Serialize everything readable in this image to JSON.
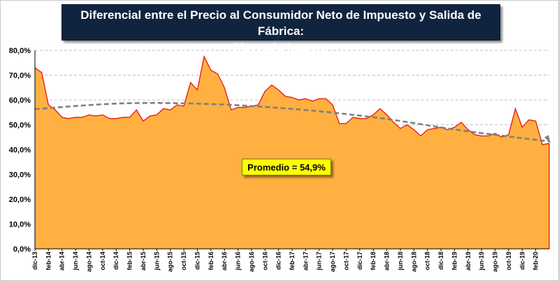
{
  "chart_data": {
    "type": "area",
    "title_line1": "Diferencial entre el Precio al Consumidor Neto de Impuesto y Salida de Fábrica:",
    "title_line2": "Mercado Interno",
    "annotation": "Promedio = 54,9%",
    "ylim": [
      0,
      80
    ],
    "yticks": [
      0,
      10,
      20,
      30,
      40,
      50,
      60,
      70,
      80
    ],
    "ytick_labels": [
      "0,0%",
      "10,0%",
      "20,0%",
      "30,0%",
      "40,0%",
      "50,0%",
      "60,0%",
      "70,0%",
      "80,0%"
    ],
    "x_labels": [
      "dic-13",
      "feb-14",
      "abr-14",
      "jun-14",
      "ago-14",
      "oct-14",
      "dic-14",
      "feb-15",
      "abr-15",
      "jun-15",
      "ago-15",
      "oct-15",
      "dic-15",
      "feb-16",
      "abr-16",
      "jun-16",
      "ago-16",
      "oct-16",
      "dic-16",
      "feb-17",
      "abr-17",
      "jun-17",
      "ago-17",
      "oct-17",
      "dic-17",
      "feb-18",
      "abr-18",
      "jun-18",
      "ago-18",
      "oct-18",
      "dic-18",
      "feb-19",
      "abr-19",
      "jun-19",
      "ago-19",
      "oct-19",
      "dic-19",
      "feb-20"
    ],
    "values": [
      73,
      71,
      58,
      56,
      53,
      52.5,
      53,
      53,
      54,
      53.5,
      54,
      52.5,
      52.5,
      53,
      53,
      56,
      51.5,
      53.5,
      54,
      56.5,
      56,
      58,
      57.5,
      67,
      64,
      77.5,
      72,
      70.5,
      65,
      56,
      57,
      57,
      57.5,
      58,
      63.5,
      66,
      64,
      61.5,
      61,
      60,
      60.5,
      59.5,
      60.5,
      60.5,
      58,
      50.5,
      50.5,
      53,
      52.5,
      52.5,
      54,
      56.5,
      54,
      51,
      48.5,
      50,
      48,
      45.5,
      48,
      48.5,
      49,
      48,
      49,
      51,
      48,
      46,
      45.5,
      45.5,
      46.5,
      45,
      46,
      56.5,
      49,
      52,
      51.5,
      42,
      42.5
    ],
    "trend": [
      56.3,
      58.6,
      58.4,
      56.4,
      52.8,
      47.6,
      43.3
    ],
    "colors": {
      "fill": "#ffb040",
      "line": "#e8221a",
      "trend": "#808080"
    }
  }
}
